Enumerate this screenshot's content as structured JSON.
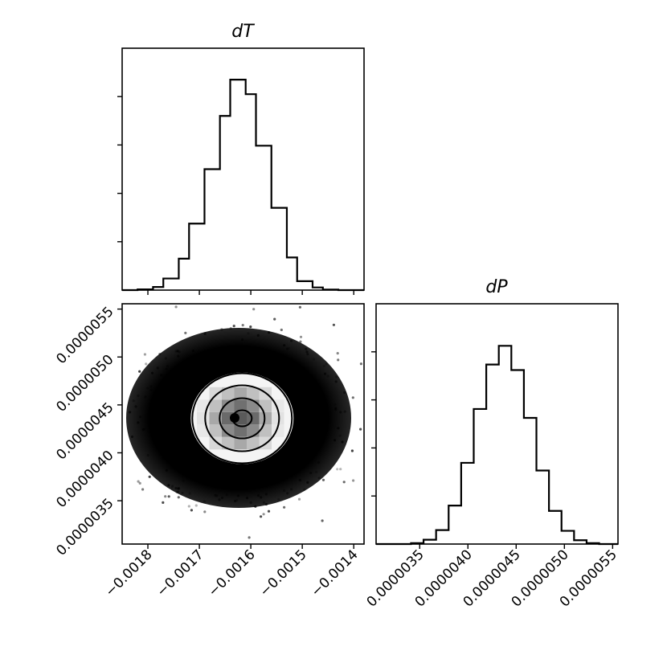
{
  "chart_data": [
    {
      "type": "histogram",
      "panel": "top-left",
      "title": "dT",
      "x_range": [
        -0.00185,
        -0.00138
      ],
      "x_ticks": [
        -0.0018,
        -0.0017,
        -0.0016,
        -0.0015,
        -0.0014
      ],
      "x_tick_labels": [],
      "y_ticks": [
        0.2,
        0.4,
        0.6,
        0.8
      ],
      "y_tick_labels": [],
      "y_range": [
        0,
        1.0
      ],
      "bins": [
        -0.00182,
        -0.00179,
        -0.00177,
        -0.00174,
        -0.00172,
        -0.00169,
        -0.00166,
        -0.00164,
        -0.00161,
        -0.00159,
        -0.00156,
        -0.00153,
        -0.00151,
        -0.00148,
        -0.00146,
        -0.00143
      ],
      "counts": [
        0.003,
        0.013,
        0.048,
        0.13,
        0.275,
        0.5,
        0.72,
        0.87,
        0.81,
        0.597,
        0.34,
        0.135,
        0.037,
        0.011,
        0.002
      ]
    },
    {
      "type": "scatter-density",
      "panel": "bottom-left",
      "x_range": [
        -0.00185,
        -0.00138
      ],
      "y_range": [
        3.048e-06,
        5.5554e-06
      ],
      "x_ticks": [
        -0.0018,
        -0.0017,
        -0.0016,
        -0.0015,
        -0.0014
      ],
      "x_tick_labels": [
        "−0.0018",
        "−0.0017",
        "−0.0016",
        "−0.0015",
        "−0.0014"
      ],
      "y_ticks": [
        3.5e-06,
        4e-06,
        4.5e-06,
        5e-06,
        5.5e-06
      ],
      "y_tick_labels": [
        "0.0000035",
        "0.0000040",
        "0.0000045",
        "0.0000050",
        "0.0000055"
      ],
      "center": [
        -0.00162,
        4.36e-06
      ],
      "contour_levels": 4
    },
    {
      "type": "histogram",
      "panel": "bottom-right",
      "title": "dP",
      "x_range": [
        3.048e-06,
        5.5554e-06
      ],
      "x_ticks": [
        3.5e-06,
        4e-06,
        4.5e-06,
        5e-06,
        5.5e-06
      ],
      "x_tick_labels": [
        "0.0000035",
        "0.0000040",
        "0.0000045",
        "0.0000050",
        "0.0000055"
      ],
      "y_ticks": [
        0.2,
        0.4,
        0.6,
        0.8
      ],
      "y_tick_labels": [],
      "y_range": [
        0,
        1.0
      ],
      "bins": [
        3.41e-06,
        3.54e-06,
        3.67e-06,
        3.8e-06,
        3.93e-06,
        4.06e-06,
        4.19e-06,
        4.32e-06,
        4.45e-06,
        4.58e-06,
        4.71e-06,
        4.84e-06,
        4.97e-06,
        5.1e-06,
        5.23e-06,
        5.36e-06
      ],
      "counts": [
        0.004,
        0.018,
        0.058,
        0.16,
        0.338,
        0.562,
        0.747,
        0.825,
        0.724,
        0.525,
        0.306,
        0.138,
        0.055,
        0.016,
        0.004
      ]
    }
  ]
}
